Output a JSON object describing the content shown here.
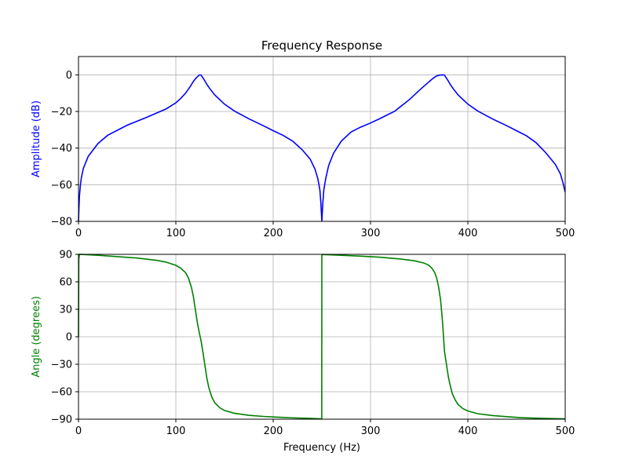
{
  "chart_data": [
    {
      "type": "line",
      "title": "Frequency Response",
      "xlabel": "",
      "ylabel": "Amplitude (dB)",
      "ylabel_color": "#0000ff",
      "line_color": "#0000ff",
      "grid": true,
      "xlim": [
        0,
        500
      ],
      "ylim": [
        -80,
        10
      ],
      "xticks": [
        0,
        100,
        200,
        300,
        400,
        500
      ],
      "xtick_labels": [
        "0",
        "100",
        "200",
        "300",
        "400",
        "500"
      ],
      "yticks": [
        0,
        -20,
        -40,
        -60,
        -80
      ],
      "ytick_labels": [
        "0",
        "−20",
        "−40",
        "−60",
        "−80"
      ],
      "series": [
        {
          "x": [
            0,
            0.5,
            1,
            2,
            3,
            5,
            10,
            20,
            30,
            50,
            70,
            90,
            100,
            105,
            110,
            115,
            118,
            121,
            124,
            125,
            126,
            129,
            132,
            135,
            140,
            150,
            160,
            175,
            190,
            200,
            210,
            220,
            230,
            238,
            243,
            246,
            248,
            249,
            249.5,
            250,
            250.5,
            251,
            252,
            254,
            257,
            262,
            270,
            280,
            290,
            300,
            310,
            325,
            340,
            350,
            360,
            365,
            368,
            371,
            374,
            375,
            376,
            379,
            382,
            385,
            390,
            400,
            410,
            425,
            440,
            450,
            460,
            470,
            480,
            490,
            495,
            498,
            499,
            500
          ],
          "y": [
            -80,
            -72,
            -66,
            -60,
            -56,
            -51,
            -44.5,
            -37.5,
            -33,
            -27.5,
            -23.2,
            -18.6,
            -15.3,
            -12.9,
            -10,
            -6.2,
            -3.6,
            -1.6,
            -0.2,
            0,
            -0.2,
            -2.6,
            -5.3,
            -7.6,
            -11,
            -16,
            -19.7,
            -24,
            -27.8,
            -30.5,
            -33,
            -36.2,
            -41,
            -46,
            -51.5,
            -57,
            -63,
            -70,
            -75,
            -80,
            -75,
            -70,
            -63,
            -56.5,
            -49.5,
            -42.8,
            -36.2,
            -31.2,
            -28.5,
            -26.3,
            -23.8,
            -19.8,
            -13.5,
            -8.5,
            -3.8,
            -1.6,
            -0.6,
            -0.1,
            -0.1,
            0,
            -0.2,
            -2.6,
            -5.3,
            -7.6,
            -11,
            -16,
            -19.7,
            -24,
            -27.8,
            -30.5,
            -33.2,
            -37,
            -42.5,
            -49,
            -54,
            -59.5,
            -62,
            -64
          ]
        }
      ]
    },
    {
      "type": "line",
      "title": "",
      "xlabel": "Frequency (Hz)",
      "ylabel": "Angle (degrees)",
      "ylabel_color": "#008000",
      "line_color": "#008000",
      "grid": true,
      "xlim": [
        0,
        500
      ],
      "ylim": [
        -90,
        90
      ],
      "xticks": [
        0,
        100,
        200,
        300,
        400,
        500
      ],
      "xtick_labels": [
        "0",
        "100",
        "200",
        "300",
        "400",
        "500"
      ],
      "yticks": [
        90,
        60,
        30,
        0,
        -30,
        -60,
        -90
      ],
      "ytick_labels": [
        "90",
        "60",
        "30",
        "0",
        "−30",
        "−60",
        "−90"
      ],
      "series": [
        {
          "x": [
            0,
            0.3,
            1,
            5,
            20,
            40,
            60,
            80,
            90,
            100,
            105,
            110,
            113,
            116,
            118,
            120,
            122,
            124,
            125,
            126,
            128,
            130,
            132,
            134,
            137,
            140,
            145,
            150,
            160,
            175,
            190,
            205,
            220,
            235,
            245,
            249.9,
            250,
            250.1,
            255,
            270,
            290,
            310,
            330,
            345,
            355,
            360,
            363,
            366,
            368,
            370,
            372,
            374,
            375,
            376,
            378,
            380,
            382,
            384,
            387,
            390,
            395,
            400,
            410,
            425,
            440,
            455,
            470,
            485,
            500
          ],
          "y": [
            0,
            85,
            90,
            89.8,
            89,
            87.5,
            86,
            83.5,
            81.5,
            78,
            75,
            70,
            64,
            54,
            44,
            30,
            16,
            5,
            0,
            -5,
            -18,
            -32,
            -46,
            -56,
            -66,
            -72,
            -77.5,
            -80.5,
            -83.5,
            -85.8,
            -87,
            -87.8,
            -88.5,
            -89,
            -89.4,
            -89.6,
            90,
            89.8,
            89.6,
            89,
            88,
            86.8,
            85,
            83,
            80.5,
            78,
            75,
            70,
            64,
            54,
            40,
            16,
            0,
            -16,
            -30,
            -44,
            -54,
            -62,
            -69,
            -74,
            -78.5,
            -81,
            -84,
            -86,
            -87.3,
            -88.3,
            -88.9,
            -89.3,
            -89.6
          ]
        }
      ]
    }
  ]
}
